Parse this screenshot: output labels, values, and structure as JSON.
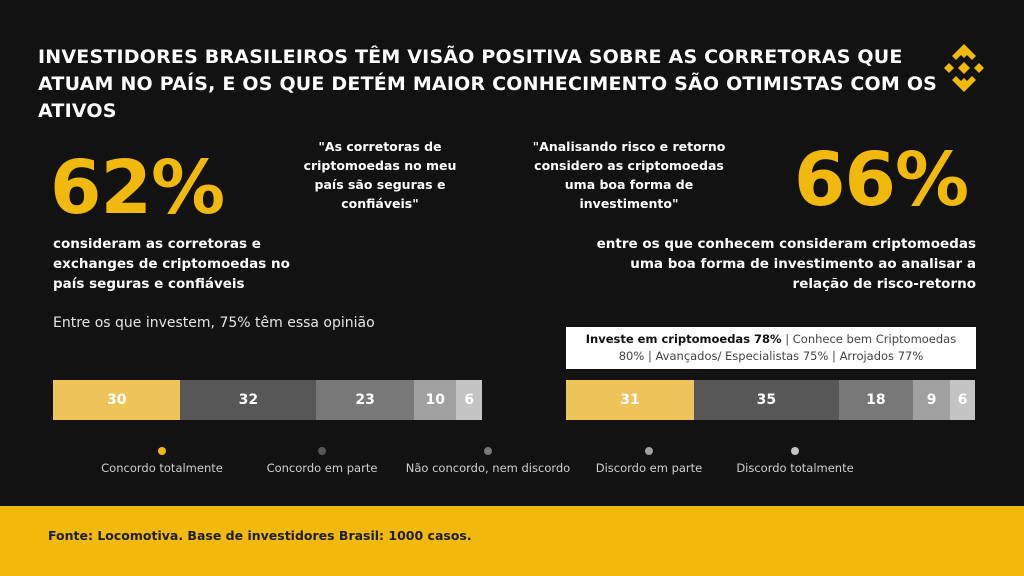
{
  "title": "INVESTIDORES BRASILEIROS TÊM VISÃO POSITIVA SOBRE AS CORRETORAS QUE ATUAM NO PAÍS, E OS QUE DETÉM MAIOR CONHECIMENTO SÃO OTIMISTAS COM OS ATIVOS",
  "logo_icon": "binance-logo-icon",
  "colors": {
    "accent": "#f0b90b",
    "background": "#121212",
    "footer": "#f0b90b"
  },
  "left": {
    "big_percent": "62%",
    "description": "consideram as corretoras e exchanges de criptomoedas no país seguras e confiáveis",
    "quote": "\"As corretoras de criptomoedas no meu país são seguras e confiáveis\"",
    "subnote": "Entre os que investem, 75% têm essa opinião"
  },
  "right": {
    "big_percent": "66%",
    "description": "entre os que conhecem consideram criptomoedas uma boa forma de investimento ao analisar a relação de risco-retorno",
    "quote": "\"Analisando risco e retorno considero as criptomoedas uma boa forma de investimento\"",
    "info_bold": "Investe em criptomoedas 78%",
    "info_rest": " | Conhece bem Criptomoedas 80% | Avançados/ Especialistas 75% | Arrojados 77%"
  },
  "chart_data": [
    {
      "type": "bar",
      "stacked": true,
      "orientation": "horizontal",
      "categories": [
        "Concordo totalmente",
        "Concordo em parte",
        "Não concordo, nem discordo",
        "Discordo em parte",
        "Discordo  totalmente"
      ],
      "values": [
        30,
        32,
        23,
        10,
        6
      ],
      "colors": [
        "#eec35a",
        "#575757",
        "#787878",
        "#a0a0a0",
        "#c4c4c4"
      ]
    },
    {
      "type": "bar",
      "stacked": true,
      "orientation": "horizontal",
      "categories": [
        "Concordo totalmente",
        "Concordo em parte",
        "Não concordo, nem discordo",
        "Discordo em parte",
        "Discordo  totalmente"
      ],
      "values": [
        31,
        35,
        18,
        9,
        6
      ],
      "colors": [
        "#eec35a",
        "#575757",
        "#787878",
        "#a0a0a0",
        "#c4c4c4"
      ]
    }
  ],
  "legend": [
    {
      "label": "Concordo totalmente",
      "color": "#f0b90b"
    },
    {
      "label": "Concordo em parte",
      "color": "#575757"
    },
    {
      "label": "Não concordo, nem discordo",
      "color": "#787878"
    },
    {
      "label": "Discordo em parte",
      "color": "#a0a0a0"
    },
    {
      "label": "Discordo  totalmente",
      "color": "#c4c4c4"
    }
  ],
  "footer": {
    "source": "Fonte: Locomotiva. Base de investidores Brasil: 1000 casos."
  }
}
